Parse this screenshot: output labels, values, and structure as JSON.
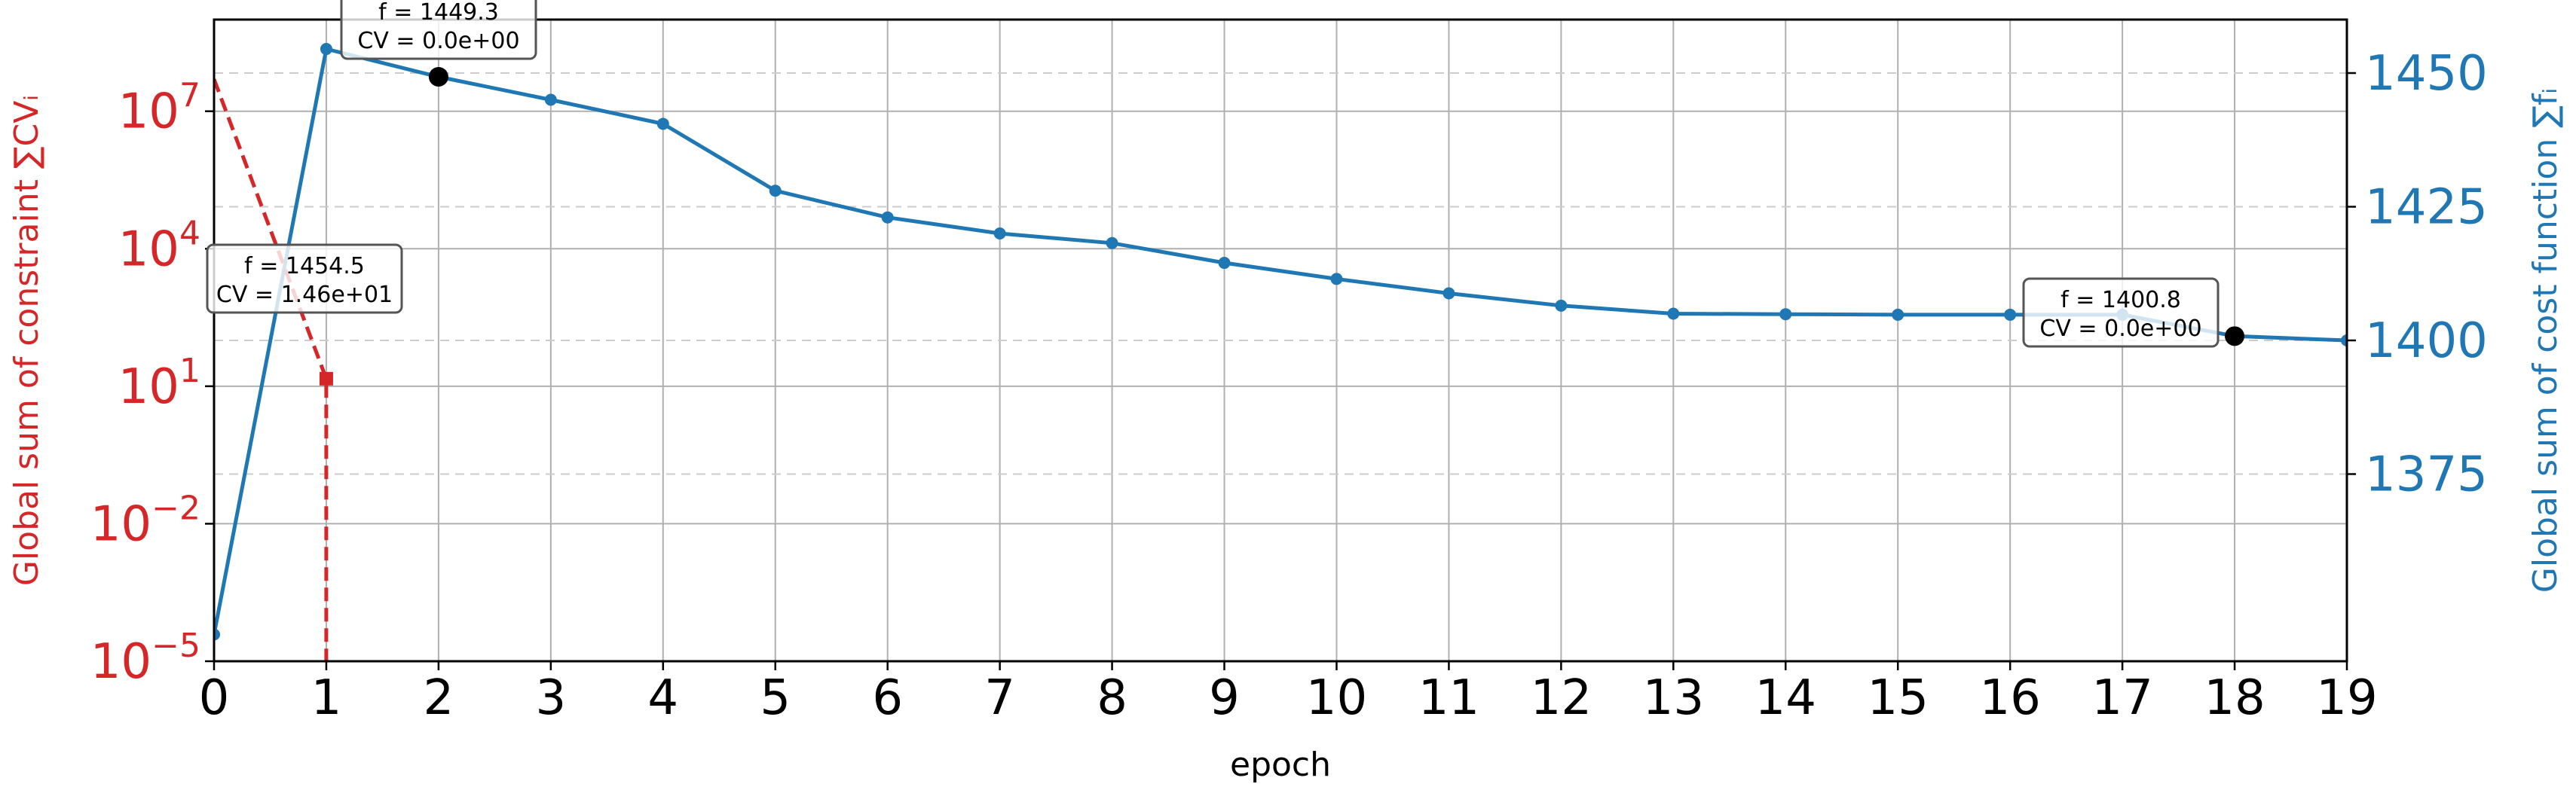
{
  "chart_data": {
    "type": "line",
    "xlabel": "epoch",
    "x": [
      0,
      1,
      2,
      3,
      4,
      5,
      6,
      7,
      8,
      9,
      10,
      11,
      12,
      13,
      14,
      15,
      16,
      17,
      18,
      19
    ],
    "xlim": [
      0,
      19
    ],
    "x_ticks": [
      "0",
      "1",
      "2",
      "3",
      "4",
      "5",
      "6",
      "7",
      "8",
      "9",
      "10",
      "11",
      "12",
      "13",
      "14",
      "15",
      "16",
      "17",
      "18",
      "19"
    ],
    "grid": true,
    "left_axis": {
      "label": "Global sum of constraint ∑CVᵢ",
      "scale": "log",
      "ylim": [
        1e-05,
        1000000000.0
      ],
      "tick_values": [
        1e-05,
        0.01,
        10.0,
        10000.0,
        10000000.0
      ],
      "tick_base": "10",
      "tick_exponents": [
        "−5",
        "−2",
        "1",
        "4",
        "7"
      ],
      "color": "#d62728"
    },
    "right_axis": {
      "label": "Global sum of cost function ∑fᵢ",
      "scale": "linear",
      "ylim": [
        1340,
        1460
      ],
      "ticks": [
        1375,
        1400,
        1425,
        1450
      ],
      "color": "#1f77b4"
    },
    "series": [
      {
        "axis": "right",
        "style": "solid",
        "marker": "circle",
        "color": "#1f77b4",
        "x": [
          0,
          1,
          2,
          3,
          4,
          5,
          6,
          7,
          8,
          9,
          10,
          11,
          12,
          13,
          14,
          15,
          16,
          17,
          18,
          19
        ],
        "values": [
          1345.0,
          1454.5,
          1449.3,
          1445.0,
          1440.5,
          1428.0,
          1423.0,
          1420.0,
          1418.2,
          1414.5,
          1411.5,
          1408.8,
          1406.5,
          1405.0,
          1404.9,
          1404.8,
          1404.8,
          1404.8,
          1400.8,
          1400.0
        ]
      },
      {
        "axis": "left",
        "style": "dashed",
        "marker": "square",
        "color": "#d62728",
        "x": [
          0,
          1,
          1
        ],
        "values": [
          50000000,
          14.6,
          1e-05
        ]
      }
    ],
    "highlights": [
      {
        "x": 2,
        "y": 1449.3,
        "color": "#000000"
      },
      {
        "x": 18,
        "y": 1400.8,
        "color": "#000000"
      }
    ],
    "annotations": [
      {
        "line1": "f = 1449.3",
        "line2": "CV = 0.0e+00",
        "x": 2
      },
      {
        "line1": "f = 1454.5",
        "line2": "CV = 1.46e+01",
        "x": 1
      },
      {
        "line1": "f = 1400.8",
        "line2": "CV = 0.0e+00",
        "x": 18
      }
    ]
  }
}
